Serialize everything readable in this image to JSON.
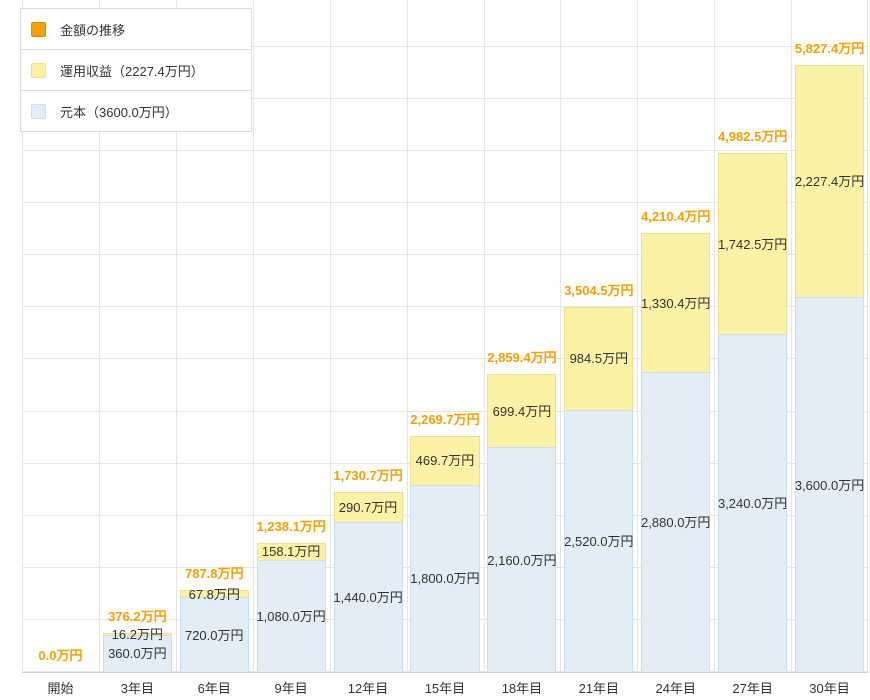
{
  "legend": {
    "items": [
      {
        "label": "金額の推移",
        "color": "#F2A100",
        "border": "#D98E00"
      },
      {
        "label": "運用収益（2227.4万円）",
        "color": "#FBF2A6",
        "border": "#EDDF8E"
      },
      {
        "label": "元本（3600.0万円）",
        "color": "#E2EDF5",
        "border": "#CBDEEC"
      }
    ]
  },
  "chart_data": {
    "type": "bar",
    "stacked": true,
    "title": "金額の推移",
    "categories": [
      "開始",
      "3年目",
      "6年目",
      "9年目",
      "12年目",
      "15年目",
      "18年目",
      "21年目",
      "24年目",
      "27年目",
      "30年目"
    ],
    "series": [
      {
        "name": "元本",
        "color": "#E2EDF5",
        "border": "#CBDEEC",
        "values": [
          0,
          360.0,
          720.0,
          1080.0,
          1440.0,
          1800.0,
          2160.0,
          2520.0,
          2880.0,
          3240.0,
          3600.0
        ],
        "labels": [
          "",
          "360.0万円",
          "720.0万円",
          "1,080.0万円",
          "1,440.0万円",
          "1,800.0万円",
          "2,160.0万円",
          "2,520.0万円",
          "2,880.0万円",
          "3,240.0万円",
          "3,600.0万円"
        ]
      },
      {
        "name": "運用収益",
        "color": "#FBF2A6",
        "border": "#EDDF8E",
        "values": [
          0,
          16.2,
          67.8,
          158.1,
          290.7,
          469.7,
          699.4,
          984.5,
          1330.4,
          1742.5,
          2227.4
        ],
        "labels": [
          "",
          "16.2万円",
          "67.8万円",
          "158.1万円",
          "290.7万円",
          "469.7万円",
          "699.4万円",
          "984.5万円",
          "1,330.4万円",
          "1,742.5万円",
          "2,227.4万円"
        ]
      }
    ],
    "totals": {
      "values": [
        0.0,
        376.2,
        787.8,
        1238.1,
        1730.7,
        2269.7,
        2859.4,
        3504.5,
        4210.4,
        4982.5,
        5827.4
      ],
      "labels": [
        "0.0万円",
        "376.2万円",
        "787.8万円",
        "1,238.1万円",
        "1,730.7万円",
        "2,269.7万円",
        "2,859.4万円",
        "3,504.5万円",
        "4,210.4万円",
        "4,982.5万円",
        "5,827.4万円"
      ]
    },
    "xlabel": "",
    "ylabel": "",
    "ylim": [
      0,
      6450
    ],
    "grid_step": 500,
    "grid_max": 6000,
    "grid_on": true,
    "legend_position": "top-left",
    "colors": {
      "total_label": "#F5A100",
      "inside_label": "#333333",
      "gridline": "#e6e6e6"
    }
  }
}
